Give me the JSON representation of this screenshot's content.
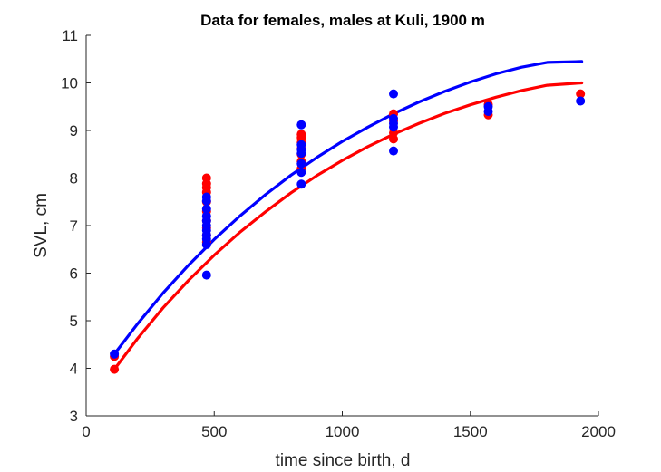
{
  "chart_data": {
    "type": "scatter",
    "title": "Data for females, males at Kuli, 1900 m",
    "xlabel": "time since birth, d",
    "ylabel": "SVL, cm",
    "xlim": [
      0,
      2000
    ],
    "ylim": [
      3,
      11
    ],
    "x_ticks": [
      "0",
      "500",
      "1000",
      "1500",
      "2000"
    ],
    "y_ticks": [
      "3",
      "4",
      "5",
      "6",
      "7",
      "8",
      "9",
      "10",
      "11"
    ],
    "grid": false,
    "legend": "none",
    "series": [
      {
        "kind": "points",
        "color": "#ff0000",
        "points": [
          [
            110,
            3.98
          ],
          [
            110,
            4.25
          ],
          [
            470,
            8.0
          ],
          [
            470,
            7.88
          ],
          [
            470,
            7.8
          ],
          [
            470,
            7.7
          ],
          [
            470,
            7.5
          ],
          [
            470,
            7.3
          ],
          [
            470,
            7.1
          ],
          [
            470,
            6.95
          ],
          [
            470,
            6.8
          ],
          [
            470,
            6.65
          ],
          [
            840,
            8.92
          ],
          [
            840,
            8.85
          ],
          [
            840,
            8.75
          ],
          [
            840,
            8.62
          ],
          [
            840,
            8.5
          ],
          [
            840,
            8.35
          ],
          [
            840,
            8.2
          ],
          [
            1200,
            9.35
          ],
          [
            1200,
            9.2
          ],
          [
            1200,
            8.95
          ],
          [
            1200,
            8.82
          ],
          [
            1570,
            9.55
          ],
          [
            1570,
            9.33
          ],
          [
            1930,
            9.77
          ]
        ]
      },
      {
        "kind": "points",
        "color": "#0000ff",
        "points": [
          [
            110,
            4.3
          ],
          [
            470,
            7.6
          ],
          [
            470,
            7.52
          ],
          [
            470,
            7.35
          ],
          [
            470,
            7.2
          ],
          [
            470,
            7.1
          ],
          [
            470,
            7.0
          ],
          [
            470,
            6.9
          ],
          [
            470,
            6.8
          ],
          [
            470,
            6.72
          ],
          [
            470,
            6.6
          ],
          [
            470,
            5.96
          ],
          [
            840,
            9.12
          ],
          [
            840,
            8.7
          ],
          [
            840,
            8.6
          ],
          [
            840,
            8.52
          ],
          [
            840,
            8.3
          ],
          [
            840,
            8.12
          ],
          [
            840,
            7.87
          ],
          [
            1200,
            9.77
          ],
          [
            1200,
            9.25
          ],
          [
            1200,
            9.15
          ],
          [
            1200,
            9.07
          ],
          [
            1200,
            8.57
          ],
          [
            1570,
            9.5
          ],
          [
            1570,
            9.4
          ],
          [
            1930,
            9.62
          ]
        ]
      },
      {
        "kind": "curve",
        "color": "#ff0000",
        "points": [
          [
            110,
            3.98
          ],
          [
            200,
            4.62
          ],
          [
            300,
            5.27
          ],
          [
            400,
            5.85
          ],
          [
            500,
            6.38
          ],
          [
            600,
            6.86
          ],
          [
            700,
            7.29
          ],
          [
            800,
            7.69
          ],
          [
            900,
            8.05
          ],
          [
            1000,
            8.37
          ],
          [
            1100,
            8.66
          ],
          [
            1200,
            8.92
          ],
          [
            1300,
            9.15
          ],
          [
            1400,
            9.36
          ],
          [
            1500,
            9.54
          ],
          [
            1600,
            9.7
          ],
          [
            1700,
            9.84
          ],
          [
            1800,
            9.95
          ],
          [
            1935,
            10.0
          ]
        ]
      },
      {
        "kind": "curve",
        "color": "#0000ff",
        "points": [
          [
            110,
            4.3
          ],
          [
            200,
            4.93
          ],
          [
            300,
            5.58
          ],
          [
            400,
            6.17
          ],
          [
            500,
            6.71
          ],
          [
            600,
            7.2
          ],
          [
            700,
            7.65
          ],
          [
            800,
            8.06
          ],
          [
            900,
            8.43
          ],
          [
            1000,
            8.77
          ],
          [
            1100,
            9.07
          ],
          [
            1200,
            9.35
          ],
          [
            1300,
            9.6
          ],
          [
            1400,
            9.82
          ],
          [
            1500,
            10.02
          ],
          [
            1600,
            10.19
          ],
          [
            1700,
            10.33
          ],
          [
            1800,
            10.43
          ],
          [
            1935,
            10.45
          ]
        ]
      }
    ]
  }
}
